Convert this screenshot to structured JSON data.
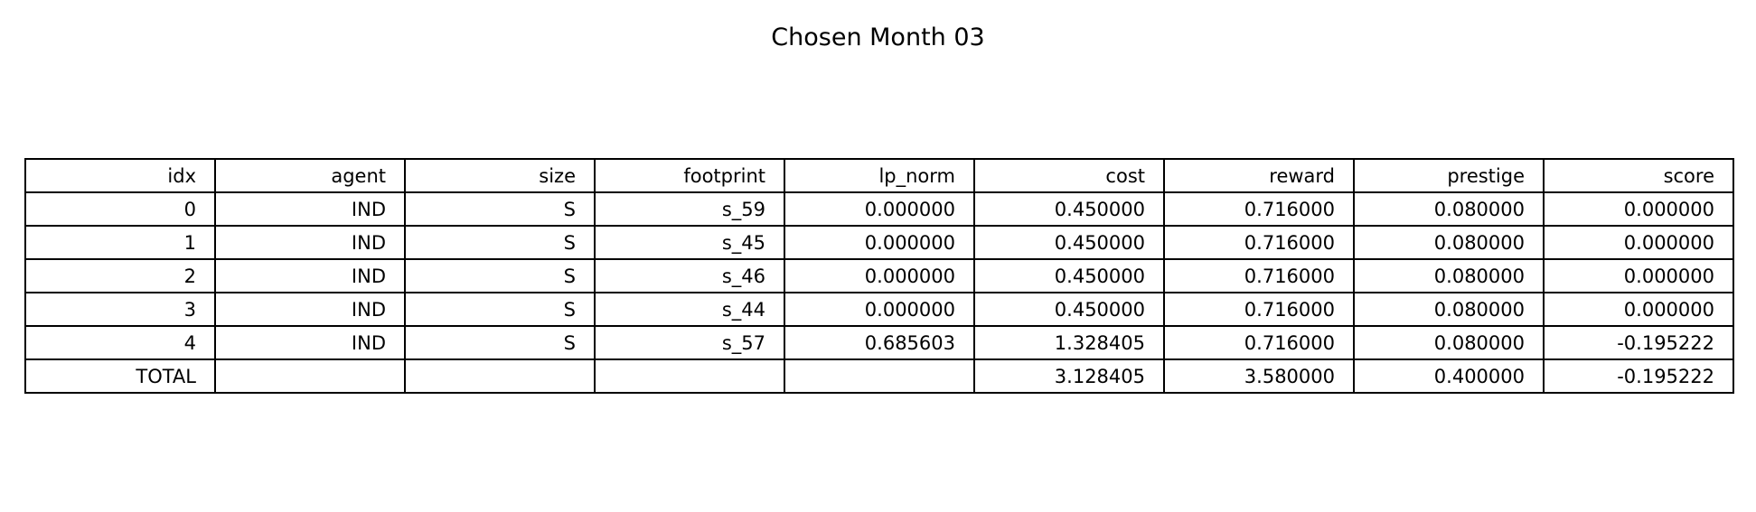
{
  "chart_data": {
    "type": "table",
    "title": "Chosen Month 03",
    "columns": [
      "idx",
      "agent",
      "size",
      "footprint",
      "lp_norm",
      "cost",
      "reward",
      "prestige",
      "score"
    ],
    "rows": [
      [
        "0",
        "IND",
        "S",
        "s_59",
        "0.000000",
        "0.450000",
        "0.716000",
        "0.080000",
        "0.000000"
      ],
      [
        "1",
        "IND",
        "S",
        "s_45",
        "0.000000",
        "0.450000",
        "0.716000",
        "0.080000",
        "0.000000"
      ],
      [
        "2",
        "IND",
        "S",
        "s_46",
        "0.000000",
        "0.450000",
        "0.716000",
        "0.080000",
        "0.000000"
      ],
      [
        "3",
        "IND",
        "S",
        "s_44",
        "0.000000",
        "0.450000",
        "0.716000",
        "0.080000",
        "0.000000"
      ],
      [
        "4",
        "IND",
        "S",
        "s_57",
        "0.685603",
        "1.328405",
        "0.716000",
        "0.080000",
        "-0.195222"
      ],
      [
        "TOTAL",
        "",
        "",
        "",
        "",
        "3.128405",
        "3.580000",
        "0.400000",
        "-0.195222"
      ]
    ]
  }
}
